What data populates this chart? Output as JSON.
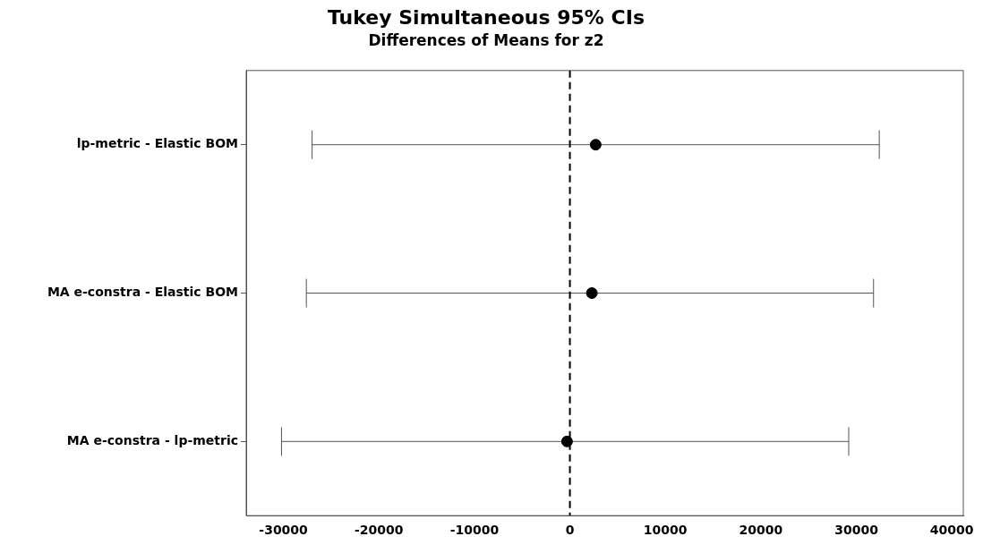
{
  "chart_data": {
    "type": "scatter",
    "orientation": "horizontal",
    "title": "Tukey Simultaneous 95% CIs",
    "subtitle": "Differences of Means for z2",
    "categories": [
      "lp-metric - Elastic BOM",
      "MA e-constra - Elastic BOM",
      "MA e-constra - lp-metric"
    ],
    "values": [
      2700,
      2300,
      -300
    ],
    "errors": [
      [
        -27000,
        32400
      ],
      [
        -27600,
        31800
      ],
      [
        -30200,
        29200
      ]
    ],
    "color": "#000000",
    "marker": "circle",
    "xlim": [
      -33900,
      41200
    ],
    "xticks": [
      -30000,
      -20000,
      -10000,
      0,
      10000,
      20000,
      30000,
      40000
    ],
    "ref_lines": [
      {
        "axis": "x",
        "value": 0,
        "line_style": "dashed",
        "color": "#000000"
      }
    ],
    "grid": false,
    "legend": false
  }
}
